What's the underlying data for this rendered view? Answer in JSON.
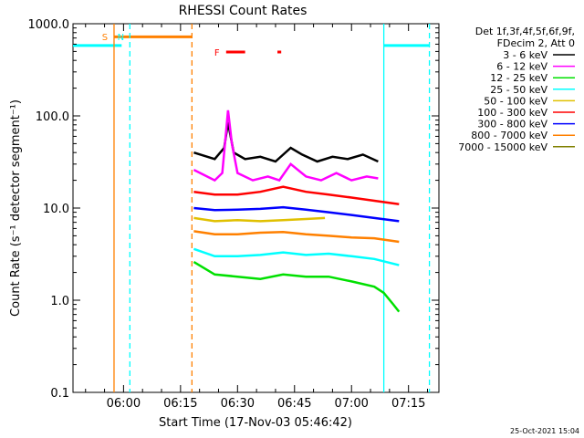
{
  "chart_data": {
    "type": "line",
    "title": "RHESSI Count Rates",
    "xlabel": "Start Time (17-Nov-03 05:46:42)",
    "ylabel": "Count Rate (s⁻¹ detector segment⁻¹)",
    "y_scale": "log",
    "ylim": [
      0.1,
      1000.0
    ],
    "xlim": [
      "05:46:42",
      "07:23:00"
    ],
    "x_tick_labels": [
      "06:00",
      "06:15",
      "06:30",
      "06:45",
      "07:00",
      "07:15"
    ],
    "y_tick_labels": [
      "0.1",
      "1.0",
      "10.0",
      "100.0",
      "1000.0"
    ],
    "grid": false,
    "legend_position": "right",
    "legend_header": [
      "Det 1f,3f,4f,5f,6f,9f,",
      "FDecim 2, Att 0"
    ],
    "timestamp": "25-Oct-2021 15:04",
    "series": [
      {
        "name": "3 - 6 keV",
        "color": "#000000",
        "points": [
          [
            "06:18:30",
            40
          ],
          [
            "06:24:00",
            34
          ],
          [
            "06:26:30",
            45
          ],
          [
            "06:27:30",
            85
          ],
          [
            "06:29:00",
            40
          ],
          [
            "06:32:00",
            34
          ],
          [
            "06:36:00",
            36
          ],
          [
            "06:40:00",
            32
          ],
          [
            "06:44:00",
            45
          ],
          [
            "06:47:00",
            38
          ],
          [
            "06:51:00",
            32
          ],
          [
            "06:55:00",
            36
          ],
          [
            "06:59:00",
            34
          ],
          [
            "07:03:00",
            38
          ],
          [
            "07:07:00",
            32
          ]
        ]
      },
      {
        "name": "6 - 12 keV",
        "color": "#ff00ff",
        "points": [
          [
            "06:18:30",
            26
          ],
          [
            "06:24:00",
            20
          ],
          [
            "06:26:00",
            24
          ],
          [
            "06:27:30",
            115
          ],
          [
            "06:28:30",
            50
          ],
          [
            "06:30:00",
            24
          ],
          [
            "06:34:00",
            20
          ],
          [
            "06:38:00",
            22
          ],
          [
            "06:41:00",
            20
          ],
          [
            "06:44:00",
            30
          ],
          [
            "06:48:00",
            22
          ],
          [
            "06:52:00",
            20
          ],
          [
            "06:56:00",
            24
          ],
          [
            "07:00:00",
            20
          ],
          [
            "07:04:00",
            22
          ],
          [
            "07:07:00",
            21
          ]
        ]
      },
      {
        "name": "12 - 25 keV",
        "color": "#00e000",
        "points": [
          [
            "06:18:30",
            2.6
          ],
          [
            "06:24:00",
            1.9
          ],
          [
            "06:30:00",
            1.8
          ],
          [
            "06:36:00",
            1.7
          ],
          [
            "06:42:00",
            1.9
          ],
          [
            "06:48:00",
            1.8
          ],
          [
            "06:54:00",
            1.8
          ],
          [
            "07:00:00",
            1.6
          ],
          [
            "07:06:00",
            1.4
          ],
          [
            "07:08:30",
            1.2
          ],
          [
            "07:11:00",
            0.9
          ],
          [
            "07:12:30",
            0.75
          ]
        ]
      },
      {
        "name": "25 - 50 keV",
        "color": "#00ffff",
        "points": [
          [
            "06:18:30",
            3.6
          ],
          [
            "06:24:00",
            3.0
          ],
          [
            "06:30:00",
            3.0
          ],
          [
            "06:36:00",
            3.1
          ],
          [
            "06:42:00",
            3.3
          ],
          [
            "06:48:00",
            3.1
          ],
          [
            "06:54:00",
            3.2
          ],
          [
            "07:00:00",
            3.0
          ],
          [
            "07:06:00",
            2.8
          ],
          [
            "07:12:30",
            2.4
          ]
        ]
      },
      {
        "name": "50 - 100 keV",
        "color": "#e0c000",
        "points": [
          [
            "06:18:30",
            7.8
          ],
          [
            "06:24:00",
            7.2
          ],
          [
            "06:30:00",
            7.4
          ],
          [
            "06:36:00",
            7.2
          ],
          [
            "06:42:00",
            7.4
          ],
          [
            "06:48:00",
            7.6
          ],
          [
            "06:53:00",
            7.8
          ]
        ]
      },
      {
        "name": "100 - 300 keV",
        "color": "#ff0000",
        "points": [
          [
            "06:18:30",
            15
          ],
          [
            "06:24:00",
            14
          ],
          [
            "06:30:00",
            14
          ],
          [
            "06:36:00",
            15
          ],
          [
            "06:42:00",
            17
          ],
          [
            "06:48:00",
            15
          ],
          [
            "06:54:00",
            14
          ],
          [
            "07:00:00",
            13
          ],
          [
            "07:06:00",
            12
          ],
          [
            "07:12:30",
            11
          ]
        ]
      },
      {
        "name": "300 - 800 keV",
        "color": "#0000ff",
        "points": [
          [
            "06:18:30",
            10
          ],
          [
            "06:24:00",
            9.5
          ],
          [
            "06:30:00",
            9.6
          ],
          [
            "06:36:00",
            9.8
          ],
          [
            "06:42:00",
            10.2
          ],
          [
            "06:48:00",
            9.6
          ],
          [
            "06:54:00",
            9.0
          ],
          [
            "07:00:00",
            8.4
          ],
          [
            "07:06:00",
            7.8
          ],
          [
            "07:12:30",
            7.2
          ]
        ]
      },
      {
        "name": "800 - 7000 keV",
        "color": "#ff8000",
        "points": [
          [
            "06:18:30",
            5.6
          ],
          [
            "06:24:00",
            5.2
          ],
          [
            "06:30:00",
            5.2
          ],
          [
            "06:36:00",
            5.4
          ],
          [
            "06:42:00",
            5.5
          ],
          [
            "06:48:00",
            5.2
          ],
          [
            "06:54:00",
            5.0
          ],
          [
            "07:00:00",
            4.8
          ],
          [
            "07:06:00",
            4.7
          ],
          [
            "07:12:30",
            4.3
          ]
        ]
      },
      {
        "name": "7000 - 15000 keV",
        "color": "#808000",
        "points": []
      }
    ],
    "markers": [
      {
        "label": "S",
        "color": "#ff8000",
        "time": "05:57:30",
        "style": "solid"
      },
      {
        "label": "N",
        "color": "#00ffff",
        "time": "06:01:40",
        "style": "dashed"
      },
      {
        "label": "",
        "color": "#ff8000",
        "time": "06:18:00",
        "style": "dashed"
      },
      {
        "label": "",
        "color": "#00ffff",
        "time": "07:08:30",
        "style": "solid"
      },
      {
        "label": "",
        "color": "#00ffff",
        "time": "07:20:30",
        "style": "dashed"
      }
    ],
    "intervals": [
      {
        "color": "#00ffff",
        "start": "05:46:42",
        "end": "05:59:30",
        "level": 580
      },
      {
        "color": "#ff8000",
        "start": "05:57:30",
        "end": "06:18:00",
        "level": 720
      },
      {
        "color": "#00ffff",
        "start": "07:08:30",
        "end": "07:20:30",
        "level": 580
      }
    ],
    "flare_flag": {
      "label": "F",
      "color": "#ff0000",
      "segments": [
        [
          "06:27:00",
          "06:32:00"
        ],
        [
          "06:40:30",
          "06:41:30"
        ]
      ]
    }
  }
}
